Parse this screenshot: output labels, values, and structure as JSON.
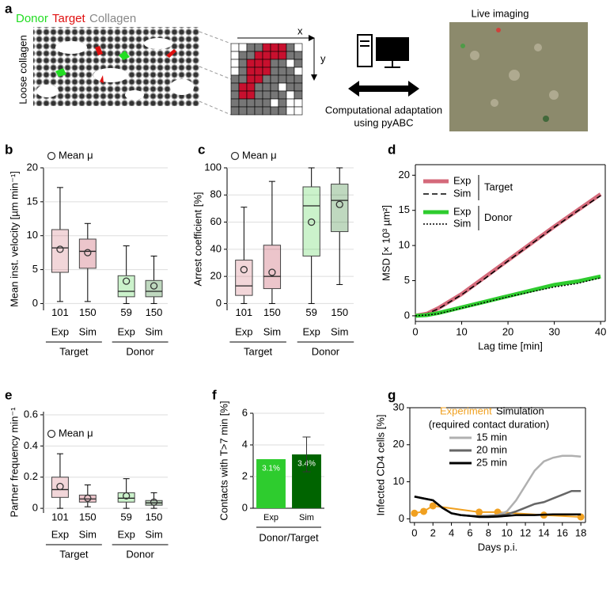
{
  "panel_a": {
    "label": "a",
    "donor": "Donor",
    "target": "Target",
    "collagen": "Collagen",
    "side_label": "Loose collagen",
    "x_axis": "x",
    "y_axis": "y",
    "caption_line1": "Computational adaptation",
    "caption_line2": "using pyABC",
    "imaging_title": "Live imaging"
  },
  "chart_data": [
    {
      "type": "box",
      "label": "b",
      "ylabel": "Mean inst. velocity [µm min⁻¹]",
      "legend_label": "Mean μ",
      "ylim": [
        -1,
        20
      ],
      "yticks": [
        0,
        5,
        10,
        15,
        20
      ],
      "grid": true,
      "groups": [
        "Target",
        "Donor"
      ],
      "categories": [
        "Exp",
        "Sim",
        "Exp",
        "Sim"
      ],
      "boxes": [
        {
          "low": 0.3,
          "q1": 4.6,
          "median": 8.2,
          "q3": 10.9,
          "high": 17.1,
          "mean": 8.0,
          "n": 101,
          "color": "#cd5b67"
        },
        {
          "low": 0.3,
          "q1": 5.2,
          "median": 7.7,
          "q3": 9.5,
          "high": 11.8,
          "mean": 7.5,
          "n": 150,
          "color": "#b5172e"
        },
        {
          "low": 0,
          "q1": 1.0,
          "median": 1.8,
          "q3": 4.1,
          "high": 8.5,
          "mean": 3.3,
          "n": 59,
          "color": "#2ecc2e"
        },
        {
          "low": 0,
          "q1": 1.0,
          "median": 1.8,
          "q3": 3.4,
          "high": 7.0,
          "mean": 2.6,
          "n": 150,
          "color": "#006400"
        }
      ]
    },
    {
      "type": "box",
      "label": "c",
      "ylabel": "Arrest coefficient [%]",
      "legend_label": "Mean μ",
      "ylim": [
        -5,
        100
      ],
      "yticks": [
        0,
        20,
        40,
        60,
        80,
        100
      ],
      "grid": true,
      "groups": [
        "Target",
        "Donor"
      ],
      "categories": [
        "Exp",
        "Sim",
        "Exp",
        "Sim"
      ],
      "boxes": [
        {
          "low": 0,
          "q1": 6,
          "median": 13,
          "q3": 32,
          "high": 71,
          "mean": 25,
          "n": 101,
          "color": "#cd5b67"
        },
        {
          "low": 0,
          "q1": 11,
          "median": 20,
          "q3": 43,
          "high": 90,
          "mean": 23,
          "n": 150,
          "color": "#b5172e"
        },
        {
          "low": 0,
          "q1": 35,
          "median": 72,
          "q3": 86,
          "high": 100,
          "mean": 60,
          "n": 59,
          "color": "#2ecc2e"
        },
        {
          "low": 14,
          "q1": 53,
          "median": 76,
          "q3": 88,
          "high": 100,
          "mean": 73,
          "n": 150,
          "color": "#006400"
        }
      ]
    },
    {
      "type": "line",
      "label": "d",
      "xlabel": "Lag time [min]",
      "ylabel": "MSD [× 10³ µm²]",
      "xlim": [
        0,
        41
      ],
      "xticks": [
        0,
        10,
        20,
        30,
        40
      ],
      "ylim": [
        -0.8,
        21.5
      ],
      "yticks": [
        0,
        5,
        10,
        15,
        20
      ],
      "legend_groups": [
        "Target",
        "Donor"
      ],
      "x": [
        0,
        2.5,
        5,
        7.5,
        10,
        15,
        20,
        25,
        30,
        35,
        40
      ],
      "series": [
        {
          "name": "Exp",
          "color": "#d4697a",
          "width": 5,
          "dash": "none",
          "values": [
            0,
            0.3,
            1.1,
            2.1,
            3.1,
            5.5,
            7.9,
            10.3,
            12.7,
            15.0,
            17.3
          ]
        },
        {
          "name": "Sim",
          "color": "#000000",
          "width": 1.5,
          "dash": "7,4",
          "values": [
            0,
            0.3,
            1.0,
            2.0,
            3.0,
            5.3,
            7.8,
            10.2,
            12.6,
            14.9,
            17.1
          ]
        },
        {
          "name": "Exp",
          "color": "#2ecc2e",
          "width": 5,
          "dash": "none",
          "values": [
            0,
            0.1,
            0.4,
            0.8,
            1.2,
            2.0,
            2.8,
            3.6,
            4.4,
            4.9,
            5.6
          ]
        },
        {
          "name": "Sim",
          "color": "#000000",
          "width": 1.5,
          "dash": "2,2",
          "values": [
            0,
            0.1,
            0.3,
            0.7,
            1.1,
            1.9,
            2.7,
            3.4,
            4.1,
            4.6,
            5.4
          ]
        }
      ]
    },
    {
      "type": "box",
      "label": "e",
      "ylabel": "Partner frequency min⁻¹",
      "legend_label": "Mean μ",
      "ylim": [
        -0.03,
        0.62
      ],
      "yticks": [
        0,
        0.2,
        0.4,
        0.6
      ],
      "grid": true,
      "groups": [
        "Target",
        "Donor"
      ],
      "categories": [
        "Exp",
        "Sim",
        "Exp",
        "Sim"
      ],
      "boxes": [
        {
          "low": 0,
          "q1": 0.07,
          "median": 0.12,
          "q3": 0.2,
          "high": 0.35,
          "mean": 0.14,
          "n": 101,
          "color": "#cd5b67"
        },
        {
          "low": 0.01,
          "q1": 0.04,
          "median": 0.06,
          "q3": 0.085,
          "high": 0.15,
          "mean": 0.065,
          "n": 150,
          "color": "#b5172e"
        },
        {
          "low": 0,
          "q1": 0.04,
          "median": 0.065,
          "q3": 0.1,
          "high": 0.19,
          "mean": 0.08,
          "n": 59,
          "color": "#2ecc2e"
        },
        {
          "low": 0,
          "q1": 0.02,
          "median": 0.035,
          "q3": 0.05,
          "high": 0.1,
          "mean": 0.04,
          "n": 150,
          "color": "#006400"
        }
      ]
    },
    {
      "type": "bar",
      "label": "f",
      "ylabel": "Contacts with T>7 min [%]",
      "xlabel": "Donor/Target",
      "ylim": [
        0,
        6
      ],
      "yticks": [
        0,
        2,
        4,
        6
      ],
      "grid": true,
      "categories": [
        "Exp",
        "Sim"
      ],
      "values": [
        3.1,
        3.4
      ],
      "value_labels": [
        "3.1%",
        "3.4%"
      ],
      "errors": [
        null,
        1.1
      ],
      "colors": [
        "#2ecc2e",
        "#006400"
      ]
    },
    {
      "type": "line",
      "label": "g",
      "xlabel": "Days p.i.",
      "ylabel": "Infected CD4 cells [%]",
      "xlim": [
        -0.5,
        18.5
      ],
      "xticks": [
        0,
        2,
        4,
        6,
        8,
        10,
        12,
        14,
        16,
        18
      ],
      "ylim": [
        -1,
        30
      ],
      "yticks": [
        0,
        10,
        20,
        30
      ],
      "legend_title": "Simulation",
      "legend_subtitle": "(required contact duration)",
      "series": [
        {
          "name": "Experiment",
          "color": "#f0a020",
          "width": 2,
          "dash": "none",
          "markers": true,
          "x": [
            0,
            1,
            2,
            7,
            9,
            14,
            18
          ],
          "values": [
            1.5,
            2,
            3.5,
            1.8,
            1.8,
            1,
            0.5
          ]
        },
        {
          "name": "15 min",
          "color": "#b0b0b0",
          "width": 2.5,
          "dash": "none",
          "x": [
            0,
            1,
            2,
            3,
            4,
            5,
            6,
            7,
            8,
            9,
            10,
            11,
            12,
            13,
            14,
            15,
            16,
            17,
            18
          ],
          "values": [
            6,
            5.5,
            5,
            3,
            1.5,
            1,
            0.8,
            0.7,
            0.8,
            1,
            2,
            5,
            9,
            13,
            15.5,
            16.5,
            17,
            17,
            16.8
          ]
        },
        {
          "name": "20 min",
          "color": "#666666",
          "width": 2.5,
          "dash": "none",
          "x": [
            0,
            1,
            2,
            3,
            4,
            5,
            6,
            7,
            8,
            9,
            10,
            11,
            12,
            13,
            14,
            15,
            16,
            17,
            18
          ],
          "values": [
            6,
            5.5,
            5,
            3,
            1.5,
            1,
            0.8,
            0.7,
            0.8,
            0.9,
            1.2,
            2,
            3,
            4,
            4.5,
            5.5,
            6.5,
            7.5,
            7.5
          ]
        },
        {
          "name": "25 min",
          "color": "#000000",
          "width": 2.5,
          "dash": "none",
          "x": [
            0,
            1,
            2,
            3,
            4,
            5,
            6,
            7,
            8,
            9,
            10,
            11,
            12,
            13,
            14,
            15,
            16,
            17,
            18
          ],
          "values": [
            6,
            5.5,
            5,
            3,
            1.5,
            1,
            0.8,
            0.5,
            0.5,
            0.6,
            0.8,
            1,
            1,
            1,
            1.1,
            1.2,
            1.2,
            1.2,
            1.2
          ]
        }
      ]
    }
  ]
}
